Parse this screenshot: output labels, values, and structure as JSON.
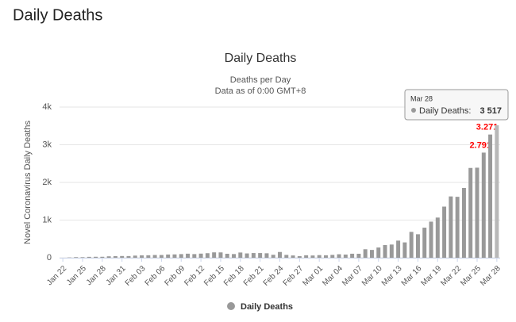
{
  "page_title": "Daily Deaths",
  "chart_data": {
    "type": "bar",
    "title": "Daily Deaths",
    "subtitle": [
      "Deaths per Day",
      "Data as of 0:00 GMT+8"
    ],
    "y_axis_label": "Novel Coronavirus Daily Deaths",
    "categories": [
      "Jan 22",
      null,
      null,
      "Jan 25",
      null,
      null,
      "Jan 28",
      null,
      null,
      "Jan 31",
      null,
      null,
      "Feb 03",
      null,
      null,
      "Feb 06",
      null,
      null,
      "Feb 09",
      null,
      null,
      "Feb 12",
      null,
      null,
      "Feb 15",
      null,
      null,
      "Feb 18",
      null,
      null,
      "Feb 21",
      null,
      null,
      "Feb 24",
      null,
      null,
      "Feb 27",
      null,
      null,
      "Mar 01",
      null,
      null,
      "Mar 04",
      null,
      null,
      "Mar 07",
      null,
      null,
      "Mar 10",
      null,
      null,
      "Mar 13",
      null,
      null,
      "Mar 16",
      null,
      null,
      "Mar 19",
      null,
      null,
      "Mar 22",
      null,
      null,
      "Mar 25",
      null,
      null,
      "Mar 28"
    ],
    "series": [
      {
        "name": "Daily Deaths",
        "color": "#999999",
        "values": [
          0,
          8,
          16,
          15,
          24,
          26,
          26,
          38,
          43,
          46,
          45,
          57,
          64,
          66,
          73,
          73,
          86,
          89,
          97,
          108,
          97,
          110,
          121,
          143,
          142,
          106,
          98,
          139,
          115,
          125,
          125,
          119,
          79,
          153,
          76,
          61,
          43,
          66,
          60,
          70,
          66,
          76,
          93,
          85,
          107,
          106,
          226,
          208,
          272,
          338,
          351,
          455,
          408,
          687,
          624,
          799,
          959,
          1067,
          1358,
          1628,
          1618,
          1853,
          2384,
          2391,
          2791,
          3271,
          3517
        ],
        "value_labels": [
          null,
          null,
          null,
          null,
          null,
          null,
          null,
          null,
          null,
          null,
          null,
          null,
          null,
          null,
          null,
          null,
          null,
          null,
          null,
          null,
          null,
          null,
          null,
          null,
          null,
          null,
          null,
          null,
          null,
          null,
          null,
          null,
          null,
          null,
          null,
          null,
          null,
          null,
          null,
          null,
          null,
          null,
          null,
          null,
          null,
          null,
          null,
          null,
          null,
          null,
          null,
          null,
          null,
          null,
          null,
          null,
          null,
          null,
          null,
          null,
          null,
          null,
          null,
          null,
          "2.791",
          "3.271",
          null
        ]
      }
    ],
    "ylim": [
      0,
      4000
    ],
    "yticks": [
      0,
      {
        "value": 1000,
        "label": "1k"
      },
      {
        "value": 2000,
        "label": "2k"
      },
      {
        "value": 3000,
        "label": "3k"
      },
      {
        "value": 4000,
        "label": "4k"
      }
    ],
    "grid": true,
    "legend": "bottom",
    "tooltip": {
      "date": "Mar 28",
      "label": "Daily Deaths:",
      "value": "3 517"
    }
  }
}
